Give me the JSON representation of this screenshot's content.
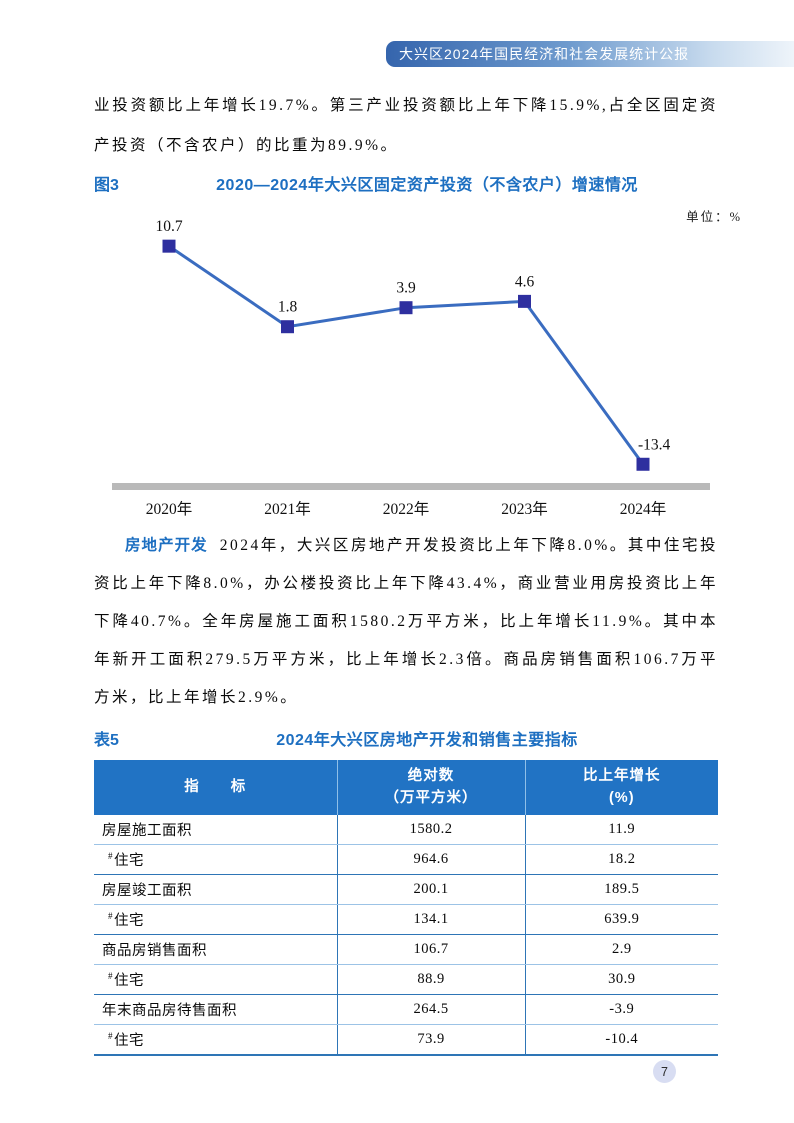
{
  "header": {
    "title": "大兴区2024年国民经济和社会发展统计公报"
  },
  "paragraphs": {
    "investment": "业投资额比上年增长19.7%。第三产业投资额比上年下降15.9%,占全区固定资产投资（不含农户）的比重为89.9%。",
    "realestate_label": "房地产开发",
    "realestate_text": "2024年，大兴区房地产开发投资比上年下降8.0%。其中住宅投资比上年下降8.0%，办公楼投资比上年下降43.4%，商业营业用房投资比上年下降40.7%。全年房屋施工面积1580.2万平方米，比上年增长11.9%。其中本年新开工面积279.5万平方米，比上年增长2.3倍。商品房销售面积106.7万平方米，比上年增长2.9%。"
  },
  "figure3": {
    "label": "图3",
    "title": "2020—2024年大兴区固定资产投资（不含农户）增速情况",
    "unit": "单位：%"
  },
  "chart_data": {
    "type": "line",
    "categories": [
      "2020年",
      "2021年",
      "2022年",
      "2023年",
      "2024年"
    ],
    "values": [
      10.7,
      1.8,
      3.9,
      4.6,
      -13.4
    ],
    "title": "2020—2024年大兴区固定资产投资（不含农户）增速情况",
    "unit": "单位：%",
    "ylim": [
      -18,
      14
    ],
    "grid": false,
    "data_labels": true,
    "legend": "none",
    "line_color": "#3a6cc0",
    "marker_color": "#2e2f9f",
    "marker_shape": "square",
    "axis_bar_color": "#b9b9b9",
    "label_color": "#111111"
  },
  "table5": {
    "label": "表5",
    "title": "2024年大兴区房地产开发和销售主要指标",
    "columns": {
      "indicator": "指　　标",
      "absolute_line1": "绝对数",
      "absolute_line2": "（万平方米）",
      "growth_line1": "比上年增长",
      "growth_line2": "(%)"
    },
    "rows": [
      {
        "indicator": "房屋施工面积",
        "sub": false,
        "mark": "",
        "absolute": "1580.2",
        "growth": "11.9"
      },
      {
        "indicator": "住宅",
        "sub": true,
        "mark": "#",
        "absolute": "964.6",
        "growth": "18.2"
      },
      {
        "indicator": "房屋竣工面积",
        "sub": false,
        "mark": "",
        "absolute": "200.1",
        "growth": "189.5"
      },
      {
        "indicator": "住宅",
        "sub": true,
        "mark": "#",
        "absolute": "134.1",
        "growth": "639.9"
      },
      {
        "indicator": "商品房销售面积",
        "sub": false,
        "mark": "",
        "absolute": "106.7",
        "growth": "2.9"
      },
      {
        "indicator": "住宅",
        "sub": true,
        "mark": "#",
        "absolute": "88.9",
        "growth": "30.9"
      },
      {
        "indicator": "年末商品房待售面积",
        "sub": false,
        "mark": "",
        "absolute": "264.5",
        "growth": "-3.9"
      },
      {
        "indicator": "住宅",
        "sub": true,
        "mark": "#",
        "absolute": "73.9",
        "growth": "-10.4"
      }
    ]
  },
  "page": {
    "number": "7"
  },
  "colors": {
    "heading_blue": "#1d6fc1",
    "table_header_bg": "#2173c4",
    "row_divider_light": "#9cc3e6",
    "row_divider_strong": "#2e75b6",
    "banner_gradient_start": "#3565ad",
    "banner_gradient_end": "#eef4fa",
    "page_badge_bg": "#d8ddf2"
  }
}
